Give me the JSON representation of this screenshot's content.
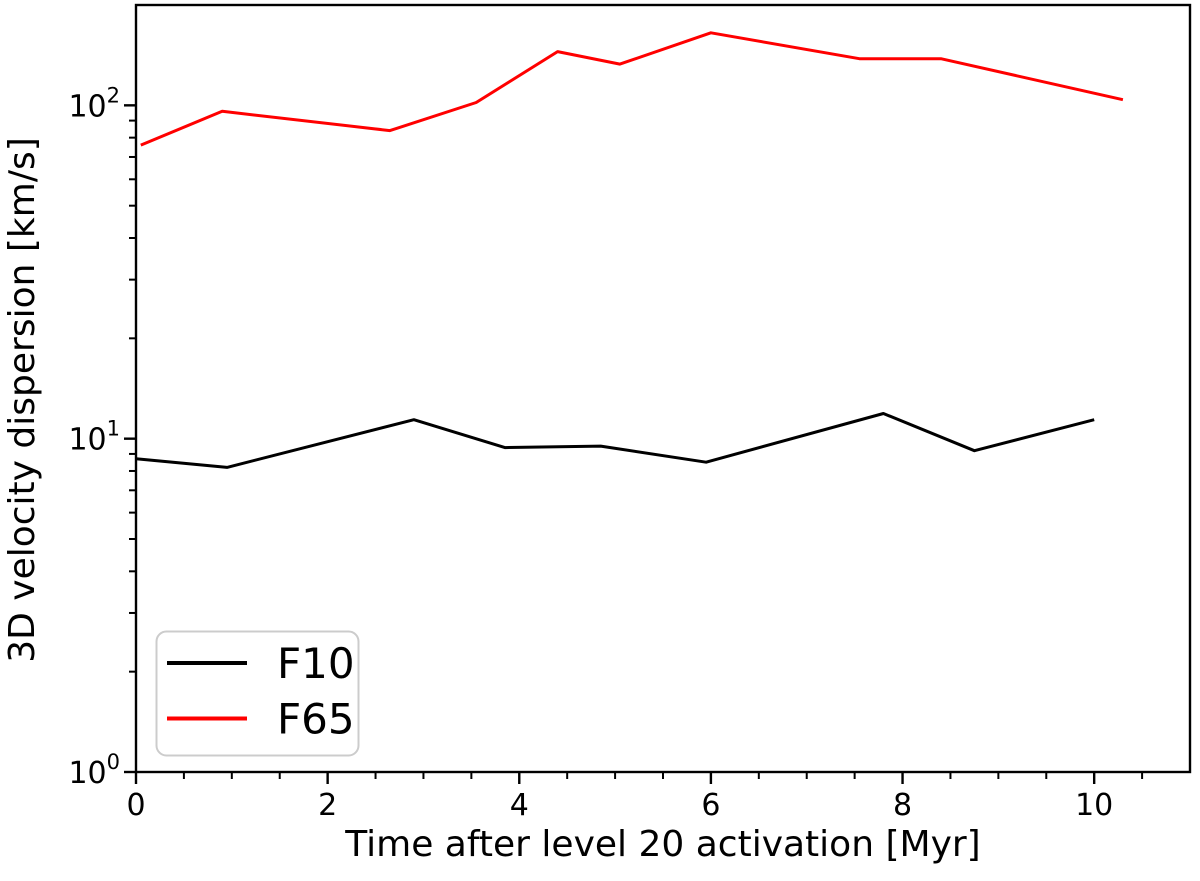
{
  "chart_data": {
    "type": "line",
    "title": "",
    "xlabel": "Time after level 20 activation [Myr]",
    "ylabel": "3D velocity dispersion [km/s]",
    "xscale": "linear",
    "yscale": "log",
    "xlim": [
      0,
      11
    ],
    "ylim": [
      1,
      200
    ],
    "grid": false,
    "background": "#ffffff",
    "axis_color": "#000000",
    "x_major_ticks": [
      {
        "value": 0,
        "label": "0"
      },
      {
        "value": 2,
        "label": "2"
      },
      {
        "value": 4,
        "label": "4"
      },
      {
        "value": 6,
        "label": "6"
      },
      {
        "value": 8,
        "label": "8"
      },
      {
        "value": 10,
        "label": "10"
      }
    ],
    "x_minor_tick_step": 0.5,
    "y_major_ticks": [
      {
        "value": 1,
        "base": "10",
        "exp": "0"
      },
      {
        "value": 10,
        "base": "10",
        "exp": "1"
      },
      {
        "value": 100,
        "base": "10",
        "exp": "2"
      }
    ],
    "y_minor_ticks_per_decade": [
      2,
      3,
      4,
      5,
      6,
      7,
      8,
      9
    ],
    "legend": {
      "position": "lower-left",
      "border_color": "#cccccc",
      "fill": "#ffffff"
    },
    "series": [
      {
        "name": "F10",
        "color": "#000000",
        "x": [
          0,
          0.95,
          2.9,
          3.85,
          4.85,
          5.95,
          7.8,
          8.75,
          10.0
        ],
        "y": [
          8.7,
          8.2,
          11.4,
          9.4,
          9.5,
          8.5,
          11.9,
          9.2,
          11.4
        ]
      },
      {
        "name": "F65",
        "color": "#ff0000",
        "x": [
          0.05,
          0.9,
          2.65,
          3.55,
          4.4,
          5.05,
          6.0,
          7.55,
          8.4,
          10.3
        ],
        "y": [
          76,
          96,
          84,
          102,
          145,
          133,
          165,
          138,
          138,
          104
        ]
      }
    ]
  }
}
